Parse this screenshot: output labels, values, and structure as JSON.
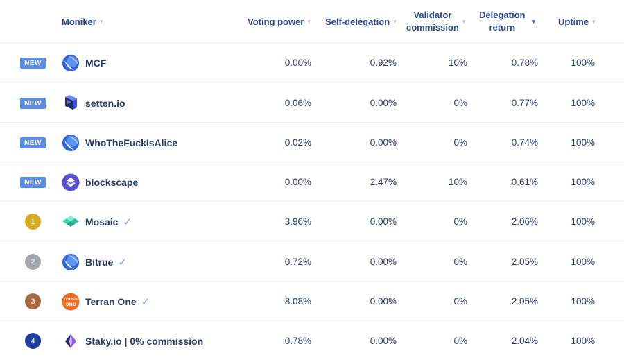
{
  "headers": {
    "moniker": "Moniker",
    "voting_power": "Voting power",
    "self_delegation": "Self-delegation",
    "validator_commission_line1": "Validator",
    "validator_commission_line2": "commission",
    "delegation_return_line1": "Delegation",
    "delegation_return_line2": "return",
    "uptime": "Uptime",
    "sort_caret": "▾",
    "sorted_column": "delegation_return"
  },
  "colors": {
    "new_badge": "#5d8ee7",
    "rank_1": "#d9a821",
    "rank_2": "#a2a6ad",
    "rank_3": "#a8693f",
    "rank_4": "#1f3f9e",
    "verified": "#7fa3e0"
  },
  "rows": [
    {
      "badge": "NEW",
      "rank": "",
      "logo": "terra-station-icon",
      "name": "MCF",
      "verified": false,
      "voting_power": "0.00%",
      "self_delegation": "0.92%",
      "commission": "10%",
      "delegation_return": "0.78%",
      "uptime": "100%"
    },
    {
      "badge": "NEW",
      "rank": "",
      "logo": "setten-cube-icon",
      "name": "setten.io",
      "verified": false,
      "voting_power": "0.06%",
      "self_delegation": "0.00%",
      "commission": "0%",
      "delegation_return": "0.77%",
      "uptime": "100%"
    },
    {
      "badge": "NEW",
      "rank": "",
      "logo": "terra-station-icon",
      "name": "WhoTheFuckIsAlice",
      "verified": false,
      "voting_power": "0.02%",
      "self_delegation": "0.00%",
      "commission": "0%",
      "delegation_return": "0.74%",
      "uptime": "100%"
    },
    {
      "badge": "NEW",
      "rank": "",
      "logo": "blockscape-icon",
      "name": "blockscape",
      "verified": false,
      "voting_power": "0.00%",
      "self_delegation": "2.47%",
      "commission": "10%",
      "delegation_return": "0.61%",
      "uptime": "100%"
    },
    {
      "badge": "",
      "rank": "1",
      "logo": "mosaic-icon",
      "name": "Mosaic",
      "verified": true,
      "voting_power": "3.96%",
      "self_delegation": "0.00%",
      "commission": "0%",
      "delegation_return": "2.06%",
      "uptime": "100%"
    },
    {
      "badge": "",
      "rank": "2",
      "logo": "terra-station-icon",
      "name": "Bitrue",
      "verified": true,
      "voting_power": "0.72%",
      "self_delegation": "0.00%",
      "commission": "0%",
      "delegation_return": "2.05%",
      "uptime": "100%"
    },
    {
      "badge": "",
      "rank": "3",
      "logo": "terran-one-icon",
      "name": "Terran One",
      "verified": true,
      "voting_power": "8.08%",
      "self_delegation": "0.00%",
      "commission": "0%",
      "delegation_return": "2.05%",
      "uptime": "100%"
    },
    {
      "badge": "",
      "rank": "4",
      "logo": "staky-icon",
      "name": "Staky.io | 0% commission",
      "verified": false,
      "voting_power": "0.78%",
      "self_delegation": "0.00%",
      "commission": "0%",
      "delegation_return": "2.04%",
      "uptime": "100%"
    }
  ],
  "logo_text": {
    "terran_one_line1": "TERRAN",
    "terran_one_line2": "one"
  }
}
